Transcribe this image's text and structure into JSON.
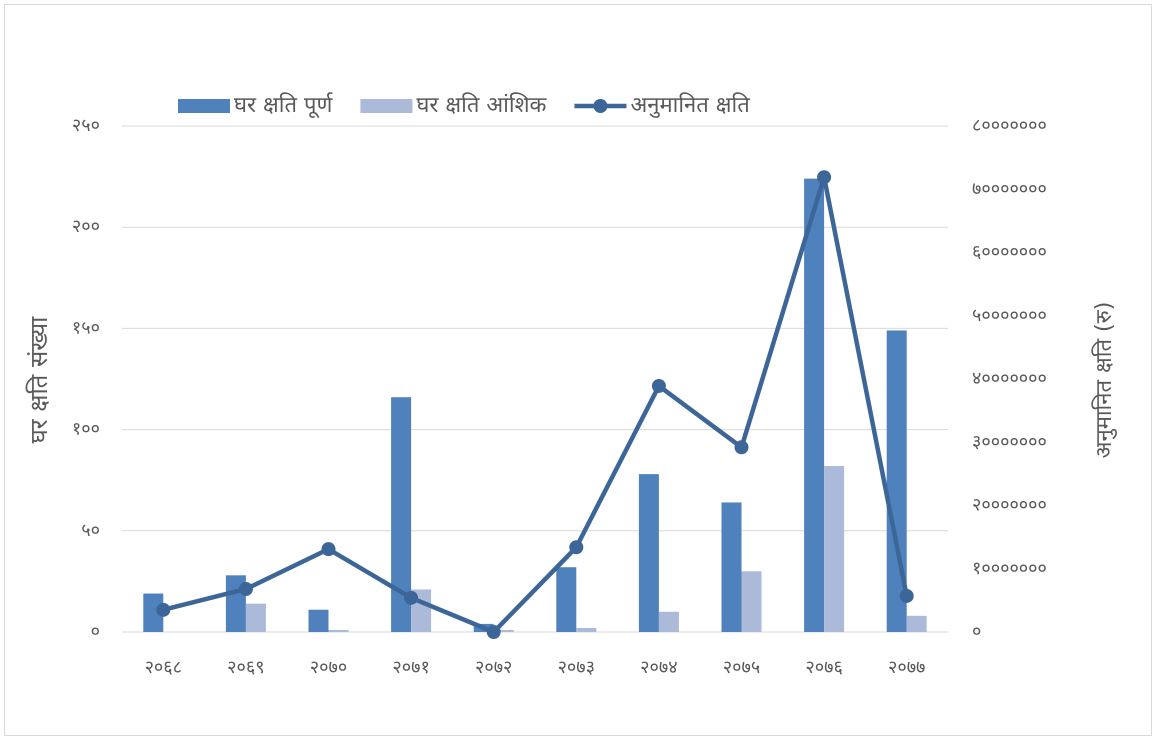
{
  "chart_data": {
    "type": "bar_line",
    "categories": [
      "२०६८",
      "२०६९",
      "२०७०",
      "२०७१",
      "२०७२",
      "२०७३",
      "२०७४",
      "२०७५",
      "२०७६",
      "२०७७"
    ],
    "series": [
      {
        "name": "घर क्षति पूर्ण",
        "color": "#4f81bd",
        "type": "bar",
        "values": [
          19,
          28,
          11,
          116,
          4,
          32,
          78,
          64,
          224,
          149
        ]
      },
      {
        "name": "घर क्षति आंशिक",
        "color": "#abbad9",
        "type": "bar",
        "values": [
          0,
          14,
          1,
          21,
          1,
          2,
          10,
          30,
          82,
          8
        ]
      },
      {
        "name": "अनुमानित क्षति",
        "color": "#3d6698",
        "type": "line",
        "axis": "y2",
        "values": [
          3500000,
          6800000,
          13100000,
          5400000,
          0,
          13400000,
          38900000,
          29200000,
          71900000,
          5700000
        ]
      }
    ],
    "ylabel": "घर क्षति संख्या",
    "y2label": "अनुमानित क्षति  (रु)",
    "ylim": [
      0,
      250
    ],
    "yticks": [
      {
        "value": 0,
        "label": "०"
      },
      {
        "value": 50,
        "label": "५०"
      },
      {
        "value": 100,
        "label": "१००"
      },
      {
        "value": 150,
        "label": "१५०"
      },
      {
        "value": 200,
        "label": "२००"
      },
      {
        "value": 250,
        "label": "२५०"
      }
    ],
    "y2lim": [
      0,
      80000000
    ],
    "y2ticks": [
      {
        "value": 0,
        "label": "०"
      },
      {
        "value": 10000000,
        "label": "१०००००००"
      },
      {
        "value": 20000000,
        "label": "२०००००००"
      },
      {
        "value": 30000000,
        "label": "३०००००००"
      },
      {
        "value": 40000000,
        "label": "४०००००००"
      },
      {
        "value": 50000000,
        "label": "५०००००००"
      },
      {
        "value": 60000000,
        "label": "६०००००००"
      },
      {
        "value": 70000000,
        "label": "७०००००००"
      },
      {
        "value": 80000000,
        "label": "८०००००००"
      }
    ],
    "grid": true,
    "legend": "top"
  }
}
